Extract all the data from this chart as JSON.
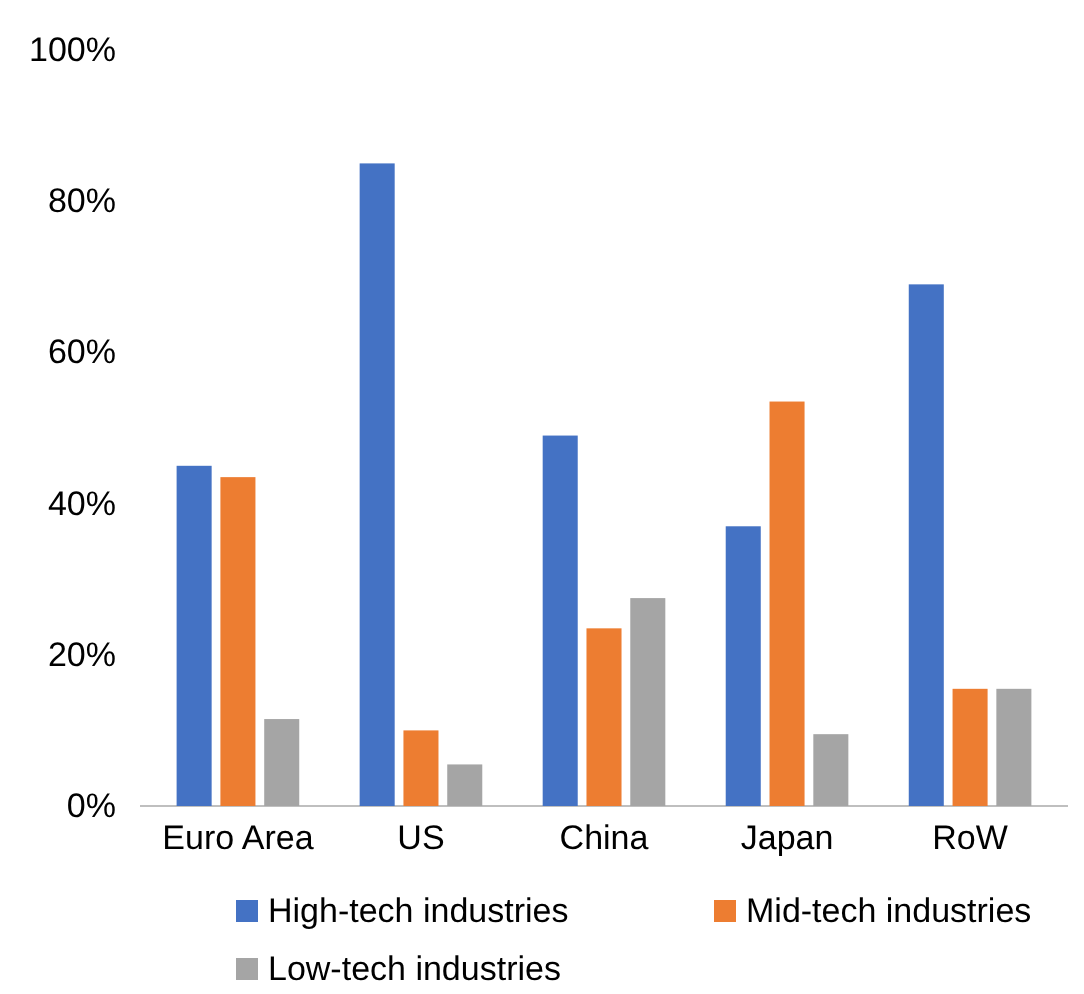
{
  "chart_data": {
    "type": "bar",
    "categories": [
      "Euro Area",
      "US",
      "China",
      "Japan",
      "RoW"
    ],
    "series": [
      {
        "name": "High-tech industries",
        "color": "#4472c4",
        "values": [
          45,
          85,
          49,
          37,
          69
        ]
      },
      {
        "name": "Mid-tech industries",
        "color": "#ed7d31",
        "values": [
          43.5,
          10,
          23.5,
          53.5,
          15.5
        ]
      },
      {
        "name": "Low-tech industries",
        "color": "#a5a5a5",
        "values": [
          11.5,
          5.5,
          27.5,
          9.5,
          15.5
        ]
      }
    ],
    "ylim": [
      0,
      100
    ],
    "yticks": [
      {
        "value": 0,
        "label": "0%"
      },
      {
        "value": 20,
        "label": "20%"
      },
      {
        "value": 40,
        "label": "40%"
      },
      {
        "value": 60,
        "label": "60%"
      },
      {
        "value": 80,
        "label": "80%"
      },
      {
        "value": 100,
        "label": "100%"
      }
    ],
    "grid": false,
    "legend": "bottom"
  }
}
